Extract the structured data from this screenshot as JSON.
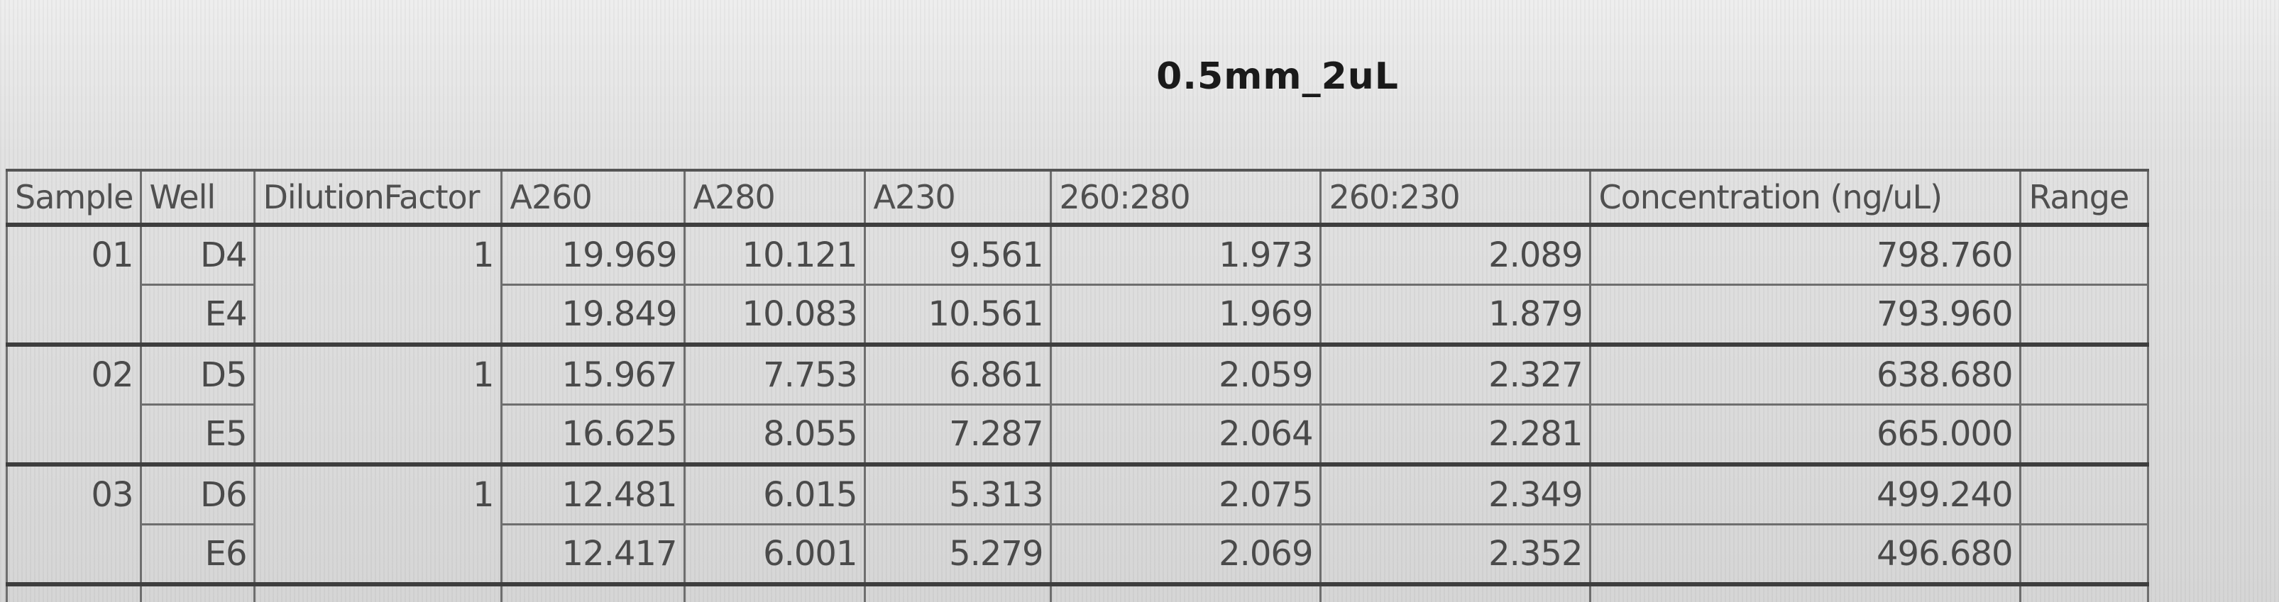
{
  "sheet": {
    "title": "0.5mm_2uL"
  },
  "table": {
    "headers": [
      "Sample",
      "Well",
      "DilutionFactor",
      "A260",
      "A280",
      "A230",
      "260:280",
      "260:230",
      "Concentration (ng/uL)",
      "Range"
    ],
    "groups": [
      {
        "sample": "01",
        "dilution": "1",
        "rows": [
          {
            "well": "D4",
            "a260": "19.969",
            "a280": "10.121",
            "a230": "9.561",
            "r260_280": "1.973",
            "r260_230": "2.089",
            "conc": "798.760",
            "range": ""
          },
          {
            "well": "E4",
            "a260": "19.849",
            "a280": "10.083",
            "a230": "10.561",
            "r260_280": "1.969",
            "r260_230": "1.879",
            "conc": "793.960",
            "range": ""
          }
        ]
      },
      {
        "sample": "02",
        "dilution": "1",
        "rows": [
          {
            "well": "D5",
            "a260": "15.967",
            "a280": "7.753",
            "a230": "6.861",
            "r260_280": "2.059",
            "r260_230": "2.327",
            "conc": "638.680",
            "range": ""
          },
          {
            "well": "E5",
            "a260": "16.625",
            "a280": "8.055",
            "a230": "7.287",
            "r260_280": "2.064",
            "r260_230": "2.281",
            "conc": "665.000",
            "range": ""
          }
        ]
      },
      {
        "sample": "03",
        "dilution": "1",
        "rows": [
          {
            "well": "D6",
            "a260": "12.481",
            "a280": "6.015",
            "a230": "5.313",
            "r260_280": "2.075",
            "r260_230": "2.349",
            "conc": "499.240",
            "range": ""
          },
          {
            "well": "E6",
            "a260": "12.417",
            "a280": "6.001",
            "a230": "5.279",
            "r260_280": "2.069",
            "r260_230": "2.352",
            "conc": "496.680",
            "range": ""
          }
        ]
      }
    ]
  }
}
